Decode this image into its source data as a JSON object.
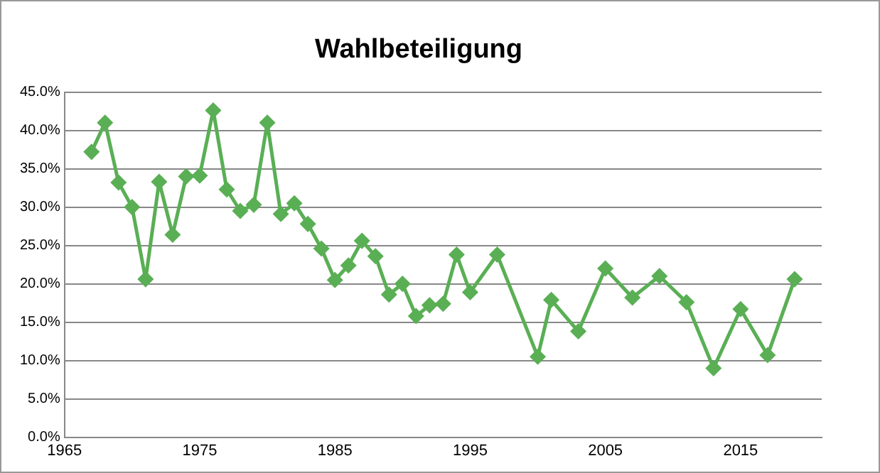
{
  "chart_data": {
    "type": "line",
    "title": "Wahlbeteiligung",
    "x": [
      1967,
      1968,
      1969,
      1970,
      1971,
      1972,
      1973,
      1974,
      1975,
      1976,
      1977,
      1978,
      1979,
      1980,
      1981,
      1982,
      1983,
      1984,
      1985,
      1986,
      1987,
      1988,
      1989,
      1990,
      1991,
      1992,
      1993,
      1994,
      1995,
      1997,
      2000,
      2001,
      2003,
      2005,
      2007,
      2009,
      2011,
      2013,
      2015,
      2017,
      2019
    ],
    "series": [
      {
        "color": "#5aaf55",
        "values": [
          37.2,
          41,
          33.2,
          30,
          20.6,
          33.3,
          26.4,
          34,
          34.1,
          42.6,
          32.3,
          29.5,
          30.3,
          41,
          29.1,
          30.5,
          27.8,
          24.6,
          20.5,
          22.4,
          25.6,
          23.6,
          18.6,
          20,
          15.8,
          17.2,
          17.4,
          23.8,
          18.9,
          23.8,
          10.5,
          17.9,
          13.8,
          22,
          18.2,
          21,
          17.6,
          9,
          16.7,
          10.7,
          20.6
        ]
      }
    ],
    "xlim": [
      1965,
      2021
    ],
    "xticks": [
      1965,
      1975,
      1985,
      1995,
      2005,
      2015
    ],
    "ylim": [
      0,
      45
    ],
    "yticks": [
      {
        "value": 0,
        "label": "0.0%"
      },
      {
        "value": 5,
        "label": "5.0%"
      },
      {
        "value": 10,
        "label": "10.0%"
      },
      {
        "value": 15,
        "label": "15.0%"
      },
      {
        "value": 20,
        "label": "20.0%"
      },
      {
        "value": 25,
        "label": "25.0%"
      },
      {
        "value": 30,
        "label": "30.0%"
      },
      {
        "value": 35,
        "label": "35.0%"
      },
      {
        "value": 40,
        "label": "40.0%"
      },
      {
        "value": 45,
        "label": "45.0%"
      }
    ],
    "grid": "y",
    "legend": false,
    "marker": "diamond",
    "line_style": "solid"
  }
}
